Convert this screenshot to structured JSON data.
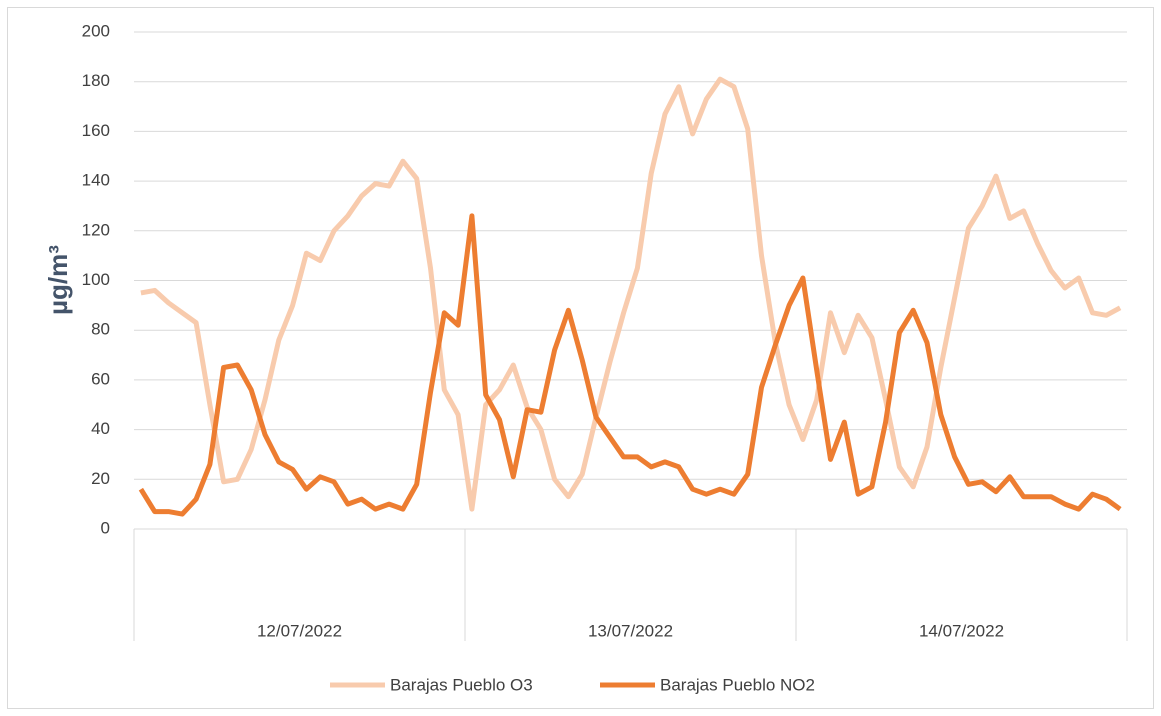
{
  "chart_data": {
    "type": "line",
    "ylabel": "µg/m³",
    "date_labels": [
      "12/07/2022",
      "13/07/2022",
      "14/07/2022"
    ],
    "ylim": [
      0,
      200
    ],
    "yticks": [
      0,
      20,
      40,
      60,
      80,
      100,
      120,
      140,
      160,
      180,
      200
    ],
    "grid": true,
    "legend": "bottom",
    "series": [
      {
        "name": "Barajas Pueblo O3",
        "color": "#f8cbad",
        "values": [
          95,
          96,
          91,
          87,
          83,
          50,
          19,
          20,
          32,
          52,
          76,
          90,
          111,
          108,
          120,
          126,
          134,
          139,
          138,
          148,
          141,
          105,
          56,
          46,
          8,
          50,
          56,
          66,
          49,
          40,
          20,
          13,
          22,
          45,
          67,
          87,
          105,
          143,
          167,
          178,
          159,
          173,
          181,
          178,
          161,
          110,
          75,
          50,
          36,
          52,
          87,
          71,
          86,
          77,
          52,
          25,
          17,
          33,
          65,
          93,
          121,
          130,
          142,
          125,
          128,
          115,
          104,
          97,
          101,
          87,
          86,
          89
        ]
      },
      {
        "name": "Barajas Pueblo NO2",
        "color": "#ed7d31",
        "values": [
          16,
          7,
          7,
          6,
          12,
          26,
          65,
          66,
          56,
          38,
          27,
          24,
          16,
          21,
          19,
          10,
          12,
          8,
          10,
          8,
          18,
          55,
          87,
          82,
          126,
          54,
          44,
          21,
          48,
          47,
          72,
          88,
          68,
          45,
          37,
          29,
          29,
          25,
          27,
          25,
          16,
          14,
          16,
          14,
          22,
          57,
          74,
          90,
          101,
          64,
          28,
          43,
          14,
          17,
          43,
          79,
          88,
          75,
          46,
          29,
          18,
          19,
          15,
          21,
          13,
          13,
          13,
          10,
          8,
          14,
          12,
          8
        ]
      }
    ]
  }
}
